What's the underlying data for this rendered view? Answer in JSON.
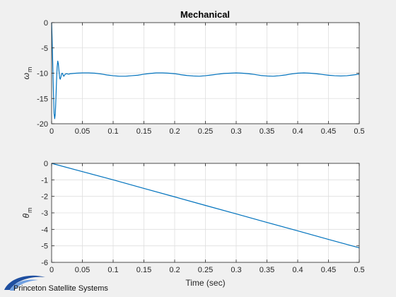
{
  "figure": {
    "title": "Mechanical",
    "logo_text": "Princeton Satellite Systems",
    "background": "#f0f0f0",
    "line_color": "#0072bd"
  },
  "chart_data": [
    {
      "type": "line",
      "title": "Mechanical",
      "xlabel": "",
      "ylabel": "ω",
      "ylabel_sub": "m",
      "xlim": [
        0,
        0.5
      ],
      "ylim": [
        -20,
        0
      ],
      "xticks": [
        0,
        0.05,
        0.1,
        0.15,
        0.2,
        0.25,
        0.3,
        0.35,
        0.4,
        0.45,
        0.5
      ],
      "xtick_labels": [
        "0",
        "0.05",
        "0.1",
        "0.15",
        "0.2",
        "0.25",
        "0.3",
        "0.35",
        "0.4",
        "0.45",
        "0.5"
      ],
      "yticks": [
        -20,
        -15,
        -10,
        -5,
        0
      ],
      "ytick_labels": [
        "-20",
        "-15",
        "-10",
        "-5",
        "0"
      ],
      "grid": true,
      "series": [
        {
          "x": [
            0,
            0.001,
            0.002,
            0.003,
            0.004,
            0.005,
            0.006,
            0.007,
            0.008,
            0.009,
            0.01,
            0.011,
            0.012,
            0.013,
            0.014,
            0.015,
            0.016,
            0.017,
            0.018,
            0.019,
            0.02,
            0.021,
            0.022,
            0.024,
            0.026,
            0.028,
            0.03,
            0.035,
            0.04,
            0.05,
            0.06,
            0.07,
            0.08,
            0.09,
            0.1,
            0.11,
            0.12,
            0.13,
            0.14,
            0.15,
            0.16,
            0.17,
            0.18,
            0.19,
            0.2,
            0.21,
            0.22,
            0.23,
            0.24,
            0.25,
            0.26,
            0.27,
            0.28,
            0.29,
            0.3,
            0.31,
            0.32,
            0.33,
            0.34,
            0.35,
            0.36,
            0.37,
            0.38,
            0.39,
            0.4,
            0.41,
            0.42,
            0.43,
            0.44,
            0.45,
            0.46,
            0.47,
            0.48,
            0.49,
            0.5
          ],
          "y": [
            0,
            -4,
            -9,
            -14,
            -18,
            -19,
            -18,
            -15,
            -11.5,
            -8.7,
            -7.6,
            -8.2,
            -9.6,
            -10.9,
            -11.2,
            -10.8,
            -10.2,
            -10.0,
            -10.1,
            -10.5,
            -10.6,
            -10.4,
            -10.2,
            -10.1,
            -10.15,
            -10.2,
            -10.1,
            -10.05,
            -10.0,
            -9.95,
            -9.95,
            -10.0,
            -10.15,
            -10.35,
            -10.5,
            -10.6,
            -10.6,
            -10.5,
            -10.4,
            -10.2,
            -10.05,
            -9.95,
            -9.95,
            -10.0,
            -10.1,
            -10.3,
            -10.45,
            -10.55,
            -10.6,
            -10.5,
            -10.35,
            -10.2,
            -10.05,
            -10.0,
            -9.95,
            -10.0,
            -10.1,
            -10.25,
            -10.45,
            -10.55,
            -10.6,
            -10.5,
            -10.35,
            -10.15,
            -10.0,
            -9.95,
            -10.0,
            -10.1,
            -10.25,
            -10.4,
            -10.5,
            -10.55,
            -10.5,
            -10.35,
            -10.2
          ]
        }
      ]
    },
    {
      "type": "line",
      "title": "",
      "xlabel": "Time (sec)",
      "ylabel": "θ",
      "ylabel_sub": "m",
      "xlim": [
        0,
        0.5
      ],
      "ylim": [
        -6,
        0
      ],
      "xticks": [
        0,
        0.05,
        0.1,
        0.15,
        0.2,
        0.25,
        0.3,
        0.35,
        0.4,
        0.45,
        0.5
      ],
      "xtick_labels": [
        "0",
        "0.05",
        "0.1",
        "0.15",
        "0.2",
        "0.25",
        "0.3",
        "0.35",
        "0.4",
        "0.45",
        "0.5"
      ],
      "yticks": [
        -6,
        -5,
        -4,
        -3,
        -2,
        -1,
        0
      ],
      "ytick_labels": [
        "-6",
        "-5",
        "-4",
        "-3",
        "-2",
        "-1",
        "0"
      ],
      "grid": true,
      "series": [
        {
          "x": [
            0,
            0.05,
            0.1,
            0.15,
            0.2,
            0.25,
            0.3,
            0.35,
            0.4,
            0.45,
            0.5
          ],
          "y": [
            0,
            -0.5,
            -1.0,
            -1.52,
            -2.03,
            -2.55,
            -3.06,
            -3.58,
            -4.09,
            -4.61,
            -5.12
          ]
        }
      ]
    }
  ]
}
